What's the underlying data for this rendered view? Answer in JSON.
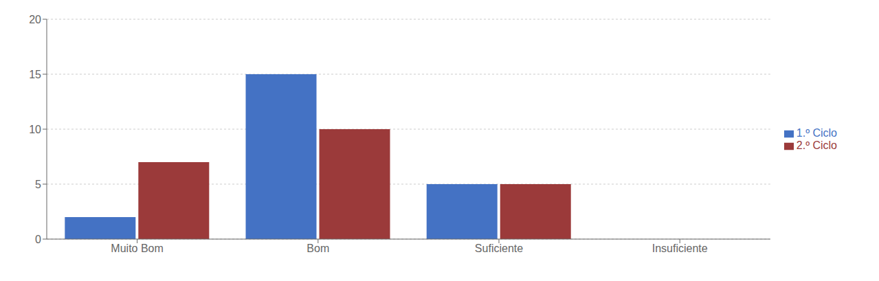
{
  "chart_data": {
    "type": "bar",
    "categories": [
      "Muito Bom",
      "Bom",
      "Suficiente",
      "Insuficiente"
    ],
    "series": [
      {
        "name": "1.º Ciclo",
        "color": "#4472C4",
        "values": [
          2,
          15,
          5,
          0
        ]
      },
      {
        "name": "2.º Ciclo",
        "color": "#9B3A3A",
        "values": [
          7,
          10,
          5,
          0
        ]
      }
    ],
    "ylim": [
      0,
      20
    ],
    "yticks": [
      0,
      5,
      10,
      15,
      20
    ],
    "grid": true,
    "legend": "right"
  }
}
